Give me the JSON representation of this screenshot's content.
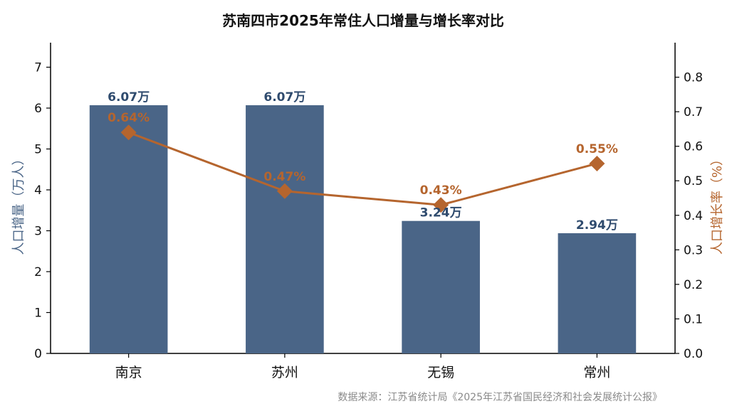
{
  "chart_data": {
    "type": "bar",
    "title": "苏南四市2025年常住人口增量与增长率对比",
    "categories": [
      "南京",
      "苏州",
      "无锡",
      "常州"
    ],
    "series": [
      {
        "kind": "bar",
        "axis": "left",
        "values": [
          6.07,
          6.07,
          3.24,
          2.94
        ],
        "labels": [
          "6.07万",
          "6.07万",
          "3.24万",
          "2.94万"
        ],
        "color": "#4a6587"
      },
      {
        "kind": "line",
        "axis": "right",
        "marker": "diamond",
        "values": [
          0.64,
          0.47,
          0.43,
          0.55
        ],
        "labels": [
          "0.64%",
          "0.47%",
          "0.43%",
          "0.55%"
        ],
        "color": "#b5652e"
      }
    ],
    "ylabel": "人口增量（万人）",
    "ylim": [
      0,
      7.6
    ],
    "yticks": [
      "0",
      "1",
      "2",
      "3",
      "4",
      "5",
      "6",
      "7"
    ],
    "y2label": "人口增长率（%）",
    "y2lim": [
      0,
      0.9
    ],
    "y2ticks": [
      "0.0",
      "0.1",
      "0.2",
      "0.3",
      "0.4",
      "0.5",
      "0.6",
      "0.7",
      "0.8"
    ],
    "grid": false,
    "source": "数据来源：江苏省统计局《2025年江苏省国民经济和社会发展统计公报》"
  }
}
